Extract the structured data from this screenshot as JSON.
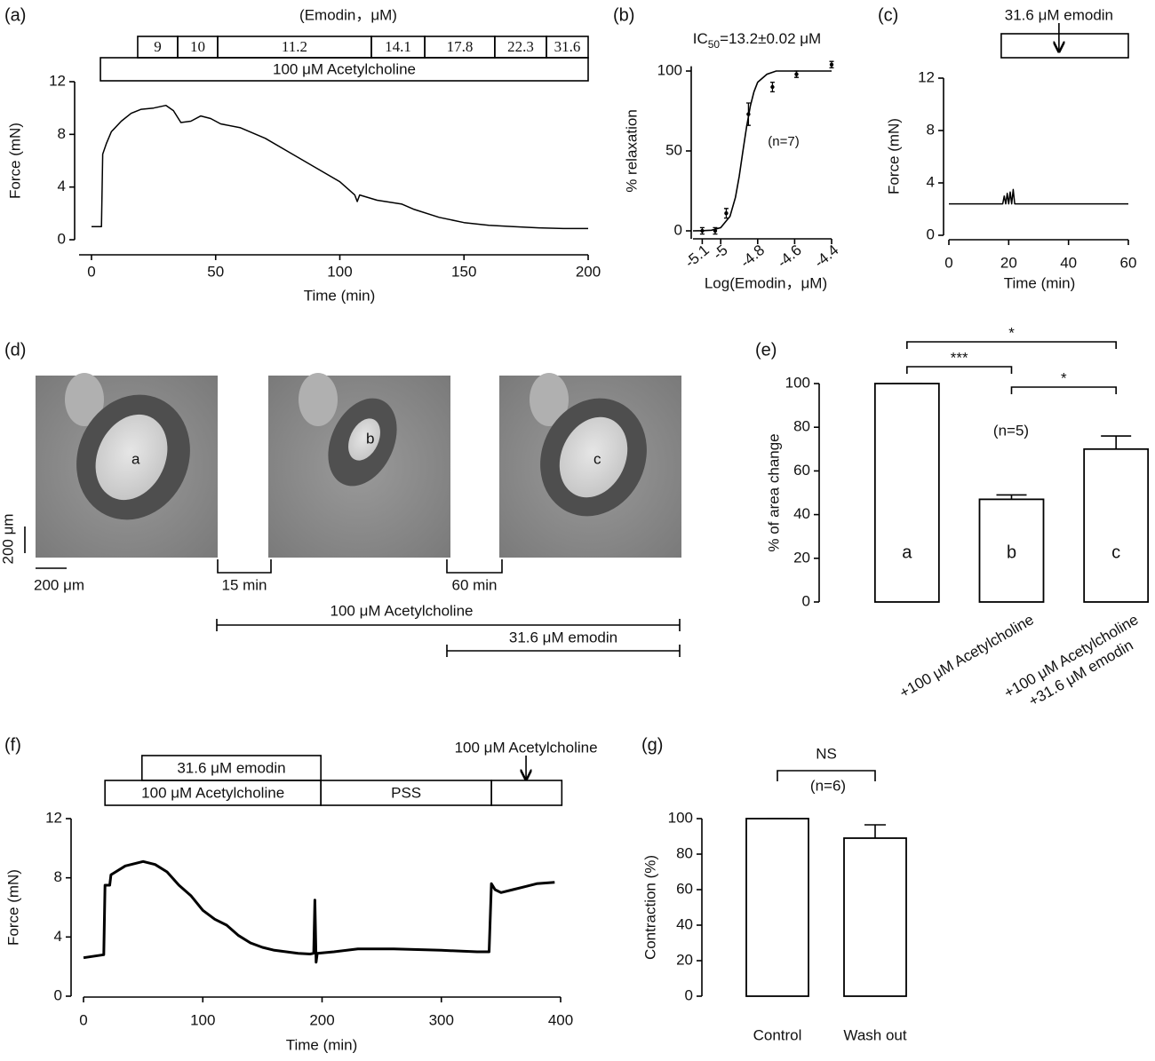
{
  "chart_data": [
    {
      "type": "line",
      "panel_label": "(a)",
      "header": "(Emodin，μM)",
      "box_rows": [
        [
          {
            "label": "9",
            "start": 18.6,
            "end": 34.7
          },
          {
            "label": "10",
            "start": 34.7,
            "end": 50.8
          },
          {
            "label": "11.2",
            "start": 50.8,
            "end": 112.7
          },
          {
            "label": "14.1",
            "start": 112.7,
            "end": 134.2
          },
          {
            "label": "17.8",
            "start": 134.2,
            "end": 162.4
          },
          {
            "label": "22.3",
            "start": 162.4,
            "end": 183.2
          },
          {
            "label": "31.6",
            "start": 183.2,
            "end": 200
          }
        ],
        [
          {
            "label": "100 μM Acetylcholine",
            "start": 3.6,
            "end": 200
          }
        ]
      ],
      "x": [
        0,
        4,
        4.5,
        6,
        8,
        12,
        16,
        20,
        25,
        30,
        33,
        36,
        40,
        44,
        48,
        52,
        60,
        70,
        80,
        90,
        100,
        106,
        107,
        108,
        115,
        125,
        130,
        140,
        150,
        160,
        170,
        180,
        190,
        200
      ],
      "series": [
        {
          "color": "#000000",
          "values": [
            1.0,
            1.0,
            6.5,
            7.3,
            8.2,
            9.0,
            9.6,
            9.9,
            10.0,
            10.2,
            9.8,
            8.9,
            9.0,
            9.4,
            9.2,
            8.8,
            8.5,
            7.7,
            6.6,
            5.5,
            4.4,
            3.4,
            2.9,
            3.4,
            3.0,
            2.7,
            2.3,
            1.7,
            1.3,
            1.1,
            1.0,
            0.9,
            0.85,
            0.85
          ]
        }
      ],
      "xlim": [
        -5,
        200
      ],
      "xticks": [
        0,
        50,
        100,
        150,
        200
      ],
      "ylim": [
        0,
        12
      ],
      "yticks": [
        0,
        4,
        8,
        12
      ],
      "xlabel": "Time (min)",
      "ylabel": "Force (mN)"
    },
    {
      "type": "scatter",
      "panel_label": "(b)",
      "title_parts": [
        "IC",
        "50",
        "=13.2±0.02 μM"
      ],
      "annotation": "(n=7)",
      "x": [
        -5.1,
        -5.03,
        -4.97,
        -4.85,
        -4.72,
        -4.59,
        -4.4
      ],
      "values": [
        0,
        0,
        11,
        73,
        90,
        98,
        104
      ],
      "errors": [
        2,
        2,
        3,
        7,
        3,
        2,
        2
      ],
      "color": "#000000",
      "fit_x": [
        -5.15,
        -5.1,
        -5.05,
        -5.0,
        -4.95,
        -4.92,
        -4.9,
        -4.88,
        -4.86,
        -4.84,
        -4.82,
        -4.8,
        -4.75,
        -4.7,
        -4.6,
        -4.5,
        -4.4
      ],
      "fit_values": [
        0,
        0.1,
        0.4,
        2,
        9,
        21,
        34,
        50,
        65,
        78,
        87,
        93,
        98,
        100,
        100,
        100,
        100
      ],
      "xlim": [
        -5.15,
        -4.4
      ],
      "xticks": [
        -5.1,
        -5.0,
        -4.8,
        -4.6,
        -4.4
      ],
      "ylim": [
        -5,
        103
      ],
      "yticks": [
        0,
        50,
        100
      ],
      "xlabel": "Log(Emodin，μM)",
      "ylabel": "% relaxation"
    },
    {
      "type": "line",
      "panel_label": "(c)",
      "box_rows": [
        [
          {
            "label": null,
            "start": 17.5,
            "end": 60
          }
        ]
      ],
      "arrow": {
        "label": "31.6 μM emodin",
        "at": 36.8
      },
      "x": [
        0,
        10,
        18,
        18.5,
        19,
        19.5,
        20,
        20.5,
        21,
        21.5,
        22,
        30,
        40,
        50,
        60
      ],
      "series": [
        {
          "color": "#000000",
          "values": [
            2.4,
            2.4,
            2.4,
            3.0,
            2.4,
            3.2,
            2.4,
            3.3,
            2.4,
            3.5,
            2.4,
            2.4,
            2.4,
            2.4,
            2.4
          ]
        }
      ],
      "xlim": [
        0,
        60
      ],
      "xticks": [
        0,
        20,
        40,
        60
      ],
      "ylim": [
        0,
        12
      ],
      "yticks": [
        0,
        4,
        8,
        12
      ],
      "xlabel": "Time (min)",
      "ylabel": "Force (mN)"
    },
    {
      "type": "bar",
      "panel_label": "(e)",
      "annotation": "(n=5)",
      "categories": [
        null,
        [
          "+100 μM Acetylcholine"
        ],
        [
          "+100 μM Acetylcholine",
          "+31.6 μM emodin"
        ]
      ],
      "bar_labels": [
        "a",
        "b",
        "c"
      ],
      "values": [
        100,
        47,
        70
      ],
      "errors": [
        0,
        2,
        6
      ],
      "errorbar": "upper",
      "color": "#ffffff",
      "brackets": [
        {
          "from": 0,
          "to": 1,
          "label": "***"
        },
        {
          "from": 1,
          "to": 2,
          "label": "*"
        },
        {
          "from": 0,
          "to": 2,
          "label": "*"
        }
      ],
      "ylim": [
        0,
        100
      ],
      "yticks": [
        0,
        20,
        40,
        60,
        80,
        100
      ],
      "ylabel": "% of area change"
    },
    {
      "type": "line",
      "panel_label": "(f)",
      "box_rows": [
        [
          {
            "label": "31.6 μM emodin",
            "start": 49,
            "end": 199
          }
        ],
        [
          {
            "label": "100 μM Acetylcholine",
            "start": 18,
            "end": 199
          },
          {
            "label": "PSS",
            "start": 199,
            "end": 342
          },
          {
            "label": null,
            "start": 342,
            "end": 401
          }
        ]
      ],
      "arrow": {
        "label": "100 μM Acetylcholine",
        "at": 371
      },
      "x": [
        0,
        17,
        18,
        22,
        23,
        35,
        50,
        60,
        70,
        80,
        90,
        100,
        110,
        120,
        130,
        140,
        150,
        160,
        170,
        180,
        190,
        193,
        194,
        195,
        196,
        210,
        230,
        260,
        300,
        330,
        340,
        342,
        345,
        350,
        360,
        370,
        380,
        395
      ],
      "series": [
        {
          "color": "#000000",
          "values": [
            2.6,
            2.8,
            7.5,
            7.5,
            8.2,
            8.8,
            9.1,
            8.9,
            8.4,
            7.5,
            6.8,
            5.8,
            5.2,
            4.8,
            4.1,
            3.6,
            3.3,
            3.1,
            3.0,
            2.9,
            2.85,
            2.9,
            6.5,
            2.3,
            2.9,
            3.0,
            3.2,
            3.2,
            3.1,
            3.0,
            3.0,
            7.6,
            7.2,
            7.0,
            7.2,
            7.4,
            7.6,
            7.7
          ]
        }
      ],
      "xlim": [
        0,
        400
      ],
      "xticks": [
        0,
        100,
        200,
        300,
        400
      ],
      "ylim": [
        0,
        12
      ],
      "yticks": [
        0,
        4,
        8,
        12
      ],
      "xlabel": "Time (min)",
      "ylabel": "Force (mN)"
    },
    {
      "type": "bar",
      "panel_label": "(g)",
      "annotation": "(n=6)",
      "categories": [
        [
          "Control"
        ],
        [
          "Wash out"
        ]
      ],
      "values": [
        100,
        89
      ],
      "errors": [
        0,
        7.5
      ],
      "errorbar": "both",
      "color": "#ffffff",
      "brackets": [
        {
          "from": 0,
          "to": 1,
          "label": "NS"
        }
      ],
      "ylim": [
        0,
        100
      ],
      "yticks": [
        0,
        20,
        40,
        60,
        80,
        100
      ],
      "ylabel": "Contraction (%)"
    }
  ],
  "image_panel": {
    "panel_label": "(d)",
    "image_labels": [
      "a",
      "b",
      "c"
    ],
    "scale_bar_vertical": "200 μm",
    "scale_bar_horizontal": "200 μm",
    "intervals": [
      "15 min",
      "60 min"
    ],
    "treatments": [
      "100 μM Acetylcholine",
      "31.6 μM emodin"
    ]
  }
}
